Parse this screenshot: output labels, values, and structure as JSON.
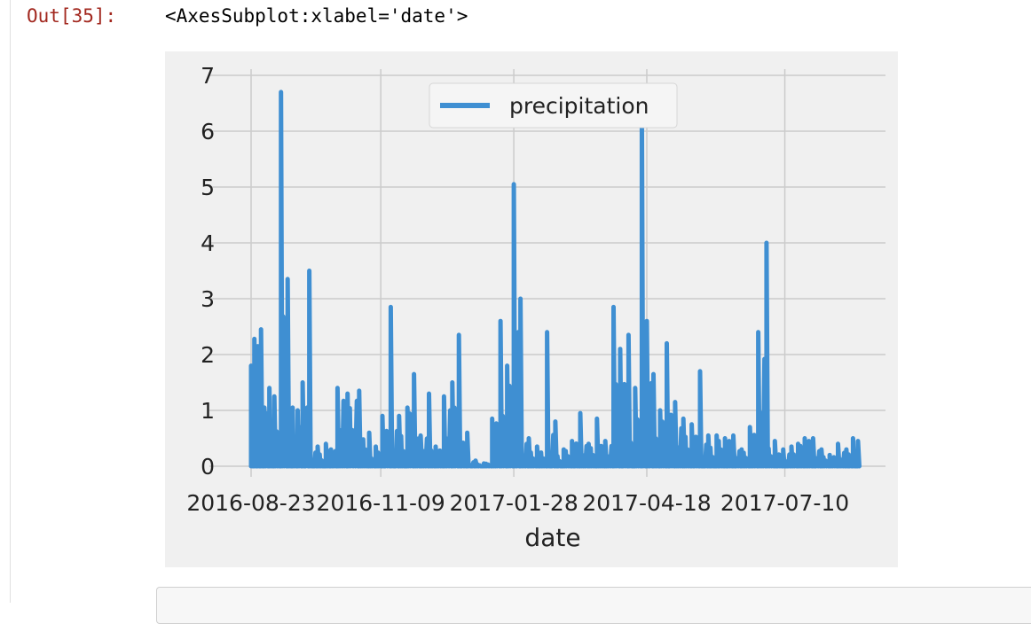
{
  "notebook": {
    "prompt_label": "Out[35]:",
    "output_repr": "<AxesSubplot:xlabel='date'>"
  },
  "chart_data": {
    "type": "line",
    "xlabel": "date",
    "ylabel": "",
    "ylim": [
      0,
      7
    ],
    "xlim": [
      "2016-08-23",
      "2017-08-23"
    ],
    "grid": true,
    "legend": {
      "position": "top-center",
      "entries": [
        "precipitation"
      ]
    },
    "x_ticks": [
      "2016-08-23",
      "2016-11-09",
      "2017-01-28",
      "2017-04-18",
      "2017-07-10"
    ],
    "y_ticks": [
      0,
      1,
      2,
      3,
      4,
      5,
      6,
      7
    ],
    "colors": {
      "line": "#3f8fd2",
      "background": "#f0f0f0",
      "grid": "#cbcbcb"
    },
    "series": [
      {
        "name": "precipitation",
        "x": [
          "2016-08-23",
          "2016-08-25",
          "2016-08-27",
          "2016-08-29",
          "2016-08-31",
          "2016-09-03",
          "2016-09-06",
          "2016-09-10",
          "2016-09-14",
          "2016-09-17",
          "2016-09-20",
          "2016-09-23",
          "2016-09-27",
          "2016-10-02",
          "2016-10-07",
          "2016-10-10",
          "2016-10-14",
          "2016-10-20",
          "2016-10-27",
          "2016-11-02",
          "2016-11-06",
          "2016-11-10",
          "2016-11-15",
          "2016-11-20",
          "2016-11-25",
          "2016-11-29",
          "2016-12-03",
          "2016-12-08",
          "2016-12-12",
          "2016-12-17",
          "2016-12-22",
          "2016-12-26",
          "2016-12-31",
          "2017-01-05",
          "2017-01-10",
          "2017-01-15",
          "2017-01-20",
          "2017-01-24",
          "2017-01-28",
          "2017-02-01",
          "2017-02-06",
          "2017-02-11",
          "2017-02-17",
          "2017-02-22",
          "2017-02-27",
          "2017-03-04",
          "2017-03-09",
          "2017-03-14",
          "2017-03-19",
          "2017-03-24",
          "2017-03-29",
          "2017-04-02",
          "2017-04-07",
          "2017-04-11",
          "2017-04-15",
          "2017-04-18",
          "2017-04-22",
          "2017-04-26",
          "2017-04-30",
          "2017-05-05",
          "2017-05-10",
          "2017-05-15",
          "2017-05-20",
          "2017-05-25",
          "2017-05-30",
          "2017-06-04",
          "2017-06-09",
          "2017-06-14",
          "2017-06-19",
          "2017-06-24",
          "2017-06-29",
          "2017-07-04",
          "2017-07-09",
          "2017-07-14",
          "2017-07-18",
          "2017-07-22",
          "2017-07-27",
          "2017-08-01",
          "2017-08-06",
          "2017-08-11",
          "2017-08-16",
          "2017-08-20",
          "2017-08-23"
        ],
        "values": [
          1.8,
          2.28,
          2.15,
          2.45,
          1.05,
          1.4,
          1.25,
          6.7,
          3.35,
          1.05,
          1.0,
          1.5,
          3.5,
          0.35,
          0.4,
          0.3,
          1.4,
          1.3,
          1.35,
          0.6,
          0.35,
          0.9,
          2.85,
          0.9,
          1.05,
          1.65,
          0.55,
          1.3,
          0.35,
          1.25,
          1.5,
          2.35,
          0.6,
          0.1,
          0.05,
          0.85,
          2.6,
          1.8,
          5.05,
          3.0,
          0.5,
          0.35,
          2.4,
          0.8,
          0.3,
          0.45,
          0.95,
          0.4,
          0.85,
          0.45,
          2.85,
          2.1,
          2.35,
          1.4,
          6.3,
          2.6,
          1.65,
          1.0,
          2.2,
          1.15,
          0.85,
          0.75,
          1.7,
          0.55,
          0.55,
          0.5,
          0.55,
          0.3,
          0.7,
          2.4,
          4.0,
          0.45,
          0.3,
          0.35,
          0.4,
          0.5,
          0.5,
          0.3,
          0.2,
          0.4,
          0.3,
          0.5,
          0.45
        ]
      }
    ]
  }
}
